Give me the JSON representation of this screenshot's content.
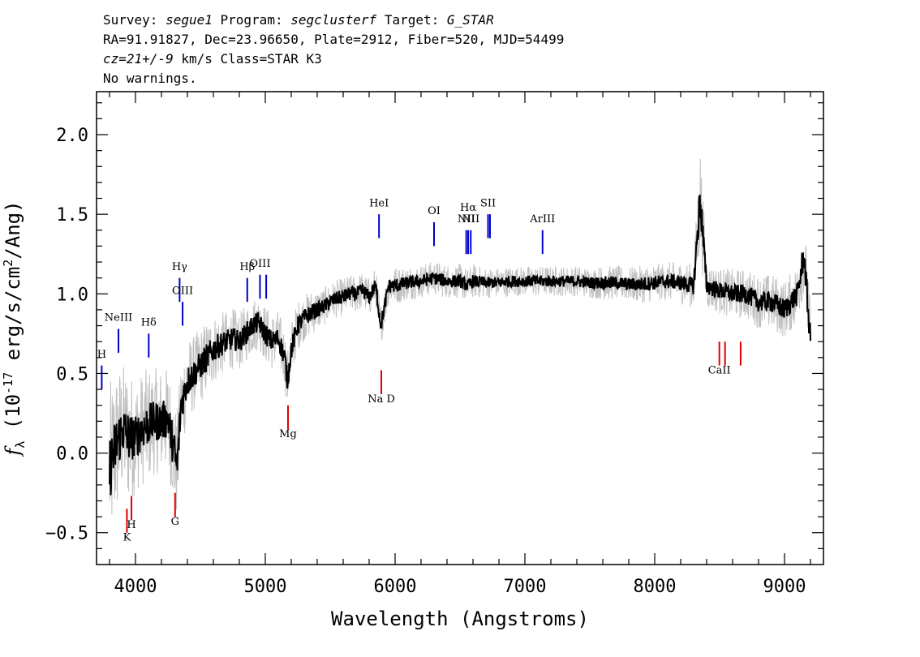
{
  "header": {
    "survey_label": "Survey:",
    "survey": "segue1",
    "program_label": "Program:",
    "program": "segclusterf",
    "target_label": "Target:",
    "target": "G_STAR",
    "coords": "RA=91.91827, Dec=23.96650, Plate=2912, Fiber=520, MJD=54499",
    "cz_value": "cz=21+/-9",
    "cz_rest": " km/s Class=STAR K3",
    "warnings": "No warnings."
  },
  "chart_data": {
    "type": "line",
    "xlabel": "Wavelength (Angstroms)",
    "ylabel_parts": [
      "f",
      "λ",
      " (10",
      "-17",
      " erg/s/cm",
      "2",
      "/Ang)"
    ],
    "xlim": [
      3700,
      9300
    ],
    "ylim": [
      -0.7,
      2.27
    ],
    "xticks": [
      4000,
      5000,
      6000,
      7000,
      8000,
      9000
    ],
    "xtick_labels": [
      "4000",
      "5000",
      "6000",
      "7000",
      "8000",
      "9000"
    ],
    "yticks": [
      -0.5,
      0.0,
      0.5,
      1.0,
      1.5,
      2.0
    ],
    "ytick_labels": [
      "−0.5",
      "0.0",
      "0.5",
      "1.0",
      "1.5",
      "2.0"
    ],
    "colors": {
      "flux": "#000000",
      "noise": "#c0c0c0",
      "emission": "#0000c8",
      "absorption": "#e00000"
    },
    "series": [
      {
        "role": "flux",
        "x": [
          3800,
          3850,
          3900,
          3950,
          4000,
          4050,
          4100,
          4150,
          4200,
          4250,
          4300,
          4320,
          4350,
          4400,
          4450,
          4500,
          4550,
          4600,
          4650,
          4700,
          4750,
          4800,
          4850,
          4900,
          4950,
          5000,
          5050,
          5100,
          5150,
          5170,
          5200,
          5250,
          5300,
          5350,
          5400,
          5450,
          5500,
          5550,
          5600,
          5650,
          5700,
          5750,
          5800,
          5850,
          5890,
          5950,
          6000,
          6100,
          6200,
          6300,
          6400,
          6500,
          6563,
          6600,
          6700,
          6800,
          6900,
          7000,
          7100,
          7200,
          7300,
          7400,
          7500,
          7600,
          7700,
          7800,
          7900,
          8000,
          8100,
          8200,
          8300,
          8350,
          8400,
          8500,
          8600,
          8700,
          8800,
          8900,
          9000,
          9100,
          9150,
          9200
        ],
        "y": [
          -0.1,
          0.05,
          0.15,
          0.1,
          0.1,
          0.15,
          0.18,
          0.2,
          0.2,
          0.22,
          0.0,
          -0.1,
          0.3,
          0.45,
          0.5,
          0.55,
          0.6,
          0.65,
          0.68,
          0.7,
          0.72,
          0.7,
          0.75,
          0.8,
          0.82,
          0.75,
          0.7,
          0.72,
          0.6,
          0.45,
          0.65,
          0.8,
          0.85,
          0.88,
          0.9,
          0.92,
          0.95,
          0.97,
          0.98,
          1.0,
          1.0,
          1.02,
          0.98,
          1.05,
          0.8,
          1.05,
          1.05,
          1.07,
          1.08,
          1.1,
          1.08,
          1.08,
          1.05,
          1.08,
          1.07,
          1.07,
          1.08,
          1.08,
          1.08,
          1.08,
          1.08,
          1.08,
          1.07,
          1.07,
          1.07,
          1.06,
          1.06,
          1.07,
          1.08,
          1.07,
          1.05,
          1.6,
          1.05,
          1.02,
          1.0,
          1.0,
          0.95,
          0.95,
          0.9,
          1.0,
          1.25,
          0.7
        ]
      },
      {
        "role": "noise",
        "x": [
          3800,
          3850,
          3900,
          3950,
          4000,
          4050,
          4100,
          4150,
          4200,
          4250,
          4300,
          4350,
          4400,
          4450,
          4500,
          4550,
          4600,
          4650,
          4700,
          4750,
          4800,
          4850,
          4900,
          4950,
          5000,
          5050,
          5100,
          5150,
          5200,
          5250,
          5300,
          5350,
          5400,
          5450,
          5500,
          5550,
          5600,
          5650,
          5700,
          5750,
          5800,
          5850,
          5900,
          5950,
          6000,
          6100,
          6200,
          6300,
          6400,
          6500,
          6600,
          6700,
          6800,
          6900,
          7000,
          7100,
          7200,
          7300,
          7400,
          7500,
          7600,
          7700,
          7800,
          7900,
          8000,
          8100,
          8200,
          8300,
          8350,
          8400,
          8500,
          8600,
          8700,
          8800,
          8900,
          9000,
          9100,
          9150,
          9200
        ],
        "y": [
          0.45,
          0.4,
          0.35,
          0.35,
          0.3,
          0.3,
          0.3,
          0.28,
          0.28,
          0.27,
          0.3,
          0.25,
          0.22,
          0.2,
          0.2,
          0.2,
          0.18,
          0.17,
          0.16,
          0.16,
          0.15,
          0.15,
          0.15,
          0.14,
          0.15,
          0.15,
          0.15,
          0.15,
          0.15,
          0.13,
          0.12,
          0.12,
          0.11,
          0.1,
          0.1,
          0.1,
          0.1,
          0.1,
          0.1,
          0.1,
          0.1,
          0.1,
          0.1,
          0.1,
          0.1,
          0.09,
          0.09,
          0.09,
          0.09,
          0.09,
          0.09,
          0.08,
          0.08,
          0.08,
          0.08,
          0.08,
          0.08,
          0.08,
          0.08,
          0.08,
          0.09,
          0.09,
          0.09,
          0.1,
          0.1,
          0.1,
          0.11,
          0.12,
          0.3,
          0.12,
          0.12,
          0.13,
          0.13,
          0.14,
          0.15,
          0.15,
          0.16,
          0.2,
          0.2
        ]
      }
    ],
    "line_markers": [
      {
        "label": "H",
        "x": 3740,
        "y0": 0.4,
        "y1": 0.55,
        "label_y": 0.6,
        "kind": "emission"
      },
      {
        "label": "NeIII",
        "x": 3869,
        "y0": 0.63,
        "y1": 0.78,
        "label_y": 0.83,
        "kind": "emission"
      },
      {
        "label": "Hδ",
        "x": 4102,
        "y0": 0.6,
        "y1": 0.75,
        "label_y": 0.8,
        "kind": "emission"
      },
      {
        "label": "Hγ",
        "x": 4340,
        "y0": 0.95,
        "y1": 1.1,
        "label_y": 1.15,
        "kind": "emission"
      },
      {
        "label": "OIII",
        "x": 4363,
        "y0": 0.8,
        "y1": 0.95,
        "label_y": 1.0,
        "kind": "emission"
      },
      {
        "label": "Hβ",
        "x": 4861,
        "y0": 0.95,
        "y1": 1.1,
        "label_y": 1.15,
        "kind": "emission"
      },
      {
        "label": "OIII",
        "x": 4959,
        "y0": 0.97,
        "y1": 1.12,
        "label_y": 1.17,
        "kind": "emission"
      },
      {
        "label": "",
        "x": 5007,
        "y0": 0.97,
        "y1": 1.12,
        "label_y": 1.17,
        "kind": "emission"
      },
      {
        "label": "HeI",
        "x": 5876,
        "y0": 1.35,
        "y1": 1.5,
        "label_y": 1.55,
        "kind": "emission"
      },
      {
        "label": "OI",
        "x": 6300,
        "y0": 1.3,
        "y1": 1.45,
        "label_y": 1.5,
        "kind": "emission"
      },
      {
        "label": "NII",
        "x": 6548,
        "y0": 1.25,
        "y1": 1.4,
        "label_y": 1.45,
        "kind": "emission"
      },
      {
        "label": "Hα",
        "x": 6563,
        "y0": 1.25,
        "y1": 1.4,
        "label_y": 1.52,
        "kind": "emission"
      },
      {
        "label": "NII",
        "x": 6583,
        "y0": 1.25,
        "y1": 1.4,
        "label_y": 1.45,
        "kind": "emission"
      },
      {
        "label": "SII",
        "x": 6716,
        "y0": 1.35,
        "y1": 1.5,
        "label_y": 1.55,
        "kind": "emission"
      },
      {
        "label": "",
        "x": 6731,
        "y0": 1.35,
        "y1": 1.5,
        "label_y": 1.55,
        "kind": "emission"
      },
      {
        "label": "ArIII",
        "x": 7136,
        "y0": 1.25,
        "y1": 1.4,
        "label_y": 1.45,
        "kind": "emission"
      },
      {
        "label": "K",
        "x": 3934,
        "y0": -0.5,
        "y1": -0.35,
        "label_y": -0.55,
        "kind": "absorption"
      },
      {
        "label": "H",
        "x": 3969,
        "y0": -0.42,
        "y1": -0.27,
        "label_y": -0.47,
        "kind": "absorption"
      },
      {
        "label": "G",
        "x": 4305,
        "y0": -0.4,
        "y1": -0.25,
        "label_y": -0.45,
        "kind": "absorption"
      },
      {
        "label": "Mg",
        "x": 5175,
        "y0": 0.15,
        "y1": 0.3,
        "label_y": 0.1,
        "kind": "absorption"
      },
      {
        "label": "Na D",
        "x": 5894,
        "y0": 0.37,
        "y1": 0.52,
        "label_y": 0.32,
        "kind": "absorption"
      },
      {
        "label": "CaII",
        "x": 8498,
        "y0": 0.55,
        "y1": 0.7,
        "label_y": 0.5,
        "kind": "absorption"
      },
      {
        "label": "",
        "x": 8542,
        "y0": 0.55,
        "y1": 0.7,
        "label_y": 0.5,
        "kind": "absorption"
      },
      {
        "label": "",
        "x": 8662,
        "y0": 0.55,
        "y1": 0.7,
        "label_y": 0.5,
        "kind": "absorption"
      }
    ]
  }
}
